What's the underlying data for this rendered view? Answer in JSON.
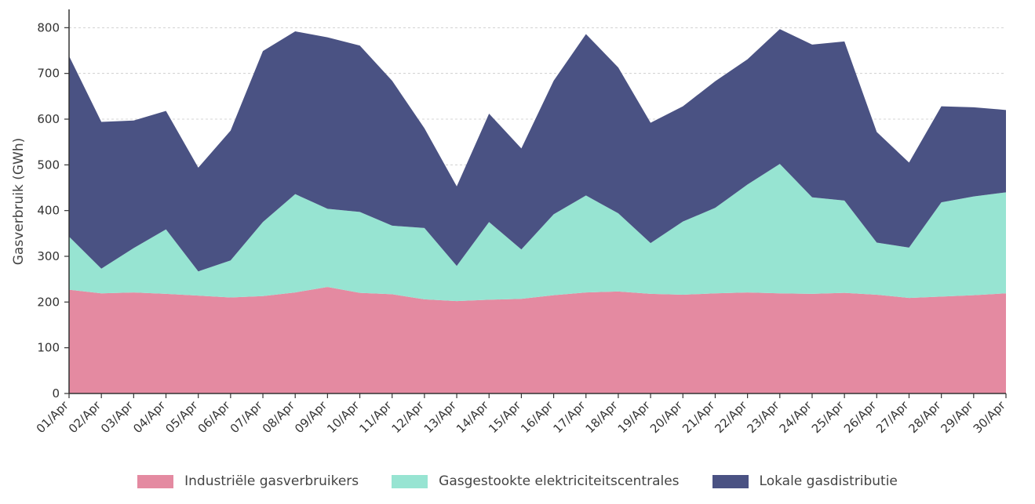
{
  "chart_data": {
    "type": "area",
    "stacked": true,
    "ylabel": "Gasverbruik (GWh)",
    "xlabel": "",
    "ylim": [
      0,
      840
    ],
    "yticks": [
      0,
      100,
      200,
      300,
      400,
      500,
      600,
      700,
      800
    ],
    "grid": "horizontal dashed",
    "legend_position": "bottom",
    "categories": [
      "01/Apr",
      "02/Apr",
      "03/Apr",
      "04/Apr",
      "05/Apr",
      "06/Apr",
      "07/Apr",
      "08/Apr",
      "09/Apr",
      "10/Apr",
      "11/Apr",
      "12/Apr",
      "13/Apr",
      "14/Apr",
      "15/Apr",
      "16/Apr",
      "17/Apr",
      "18/Apr",
      "19/Apr",
      "20/Apr",
      "21/Apr",
      "22/Apr",
      "23/Apr",
      "24/Apr",
      "25/Apr",
      "26/Apr",
      "27/Apr",
      "28/Apr",
      "29/Apr",
      "30/Apr"
    ],
    "series": [
      {
        "name": "Industriële gasverbruikers",
        "color": "#e48aa1",
        "values": [
          227,
          219,
          221,
          218,
          214,
          210,
          213,
          221,
          233,
          220,
          217,
          206,
          202,
          205,
          207,
          215,
          221,
          223,
          218,
          216,
          219,
          221,
          219,
          218,
          220,
          216,
          209,
          212,
          215,
          219
        ]
      },
      {
        "name": "Gasgestookte elektriciteitscentrales",
        "color": "#97e4d2",
        "values": [
          116,
          54,
          97,
          141,
          53,
          81,
          162,
          215,
          171,
          177,
          150,
          156,
          77,
          170,
          108,
          177,
          212,
          171,
          111,
          160,
          187,
          236,
          283,
          211,
          202,
          114,
          110,
          206,
          216,
          221
        ]
      },
      {
        "name": "Lokale gasdistributie",
        "color": "#4a5283",
        "values": [
          395,
          321,
          279,
          259,
          227,
          284,
          374,
          356,
          375,
          364,
          317,
          218,
          174,
          237,
          221,
          292,
          353,
          319,
          263,
          252,
          277,
          274,
          295,
          334,
          348,
          242,
          186,
          210,
          195,
          180
        ]
      }
    ]
  }
}
